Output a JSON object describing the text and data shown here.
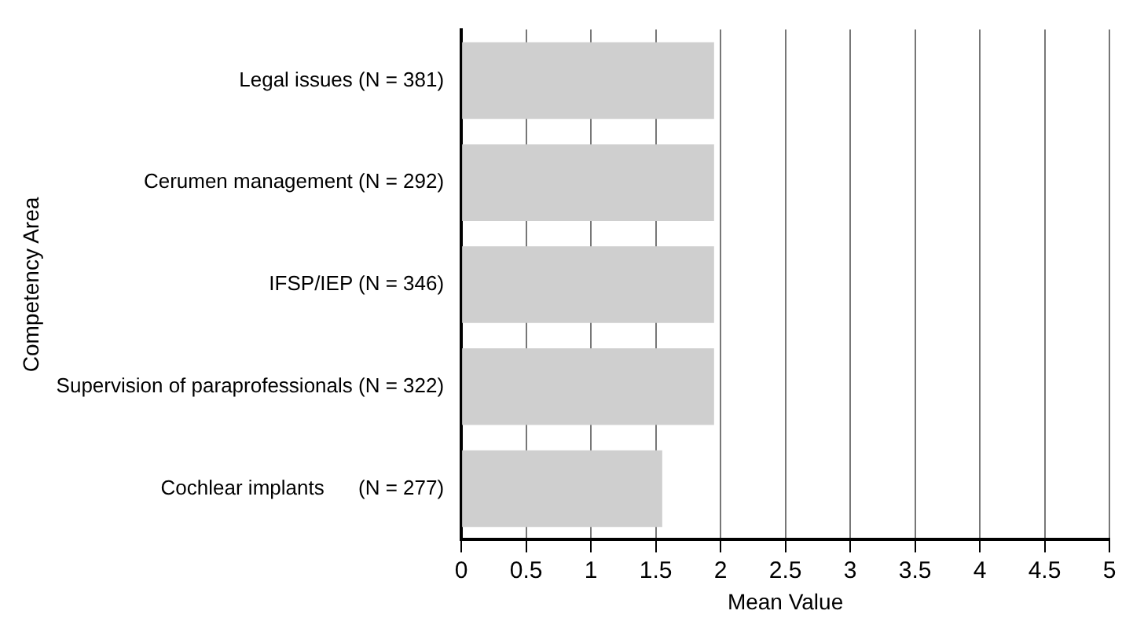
{
  "chart_data": {
    "type": "bar",
    "orientation": "horizontal",
    "xlabel": "Mean Value",
    "ylabel": "Competency Area",
    "categories": [
      "Legal issues (N = 381)",
      "Cerumen management (N = 292)",
      "IFSP/IEP (N = 346)",
      "Supervision of paraprofessionals (N = 322)",
      "Cochlear implants      (N = 277)"
    ],
    "values": [
      1.95,
      1.95,
      1.95,
      1.95,
      1.55
    ],
    "color": "#cfcfcf",
    "xlim": [
      0,
      5
    ],
    "xticks": [
      0,
      0.5,
      1,
      1.5,
      2,
      2.5,
      3,
      3.5,
      4,
      4.5,
      5
    ],
    "grid": "x"
  }
}
